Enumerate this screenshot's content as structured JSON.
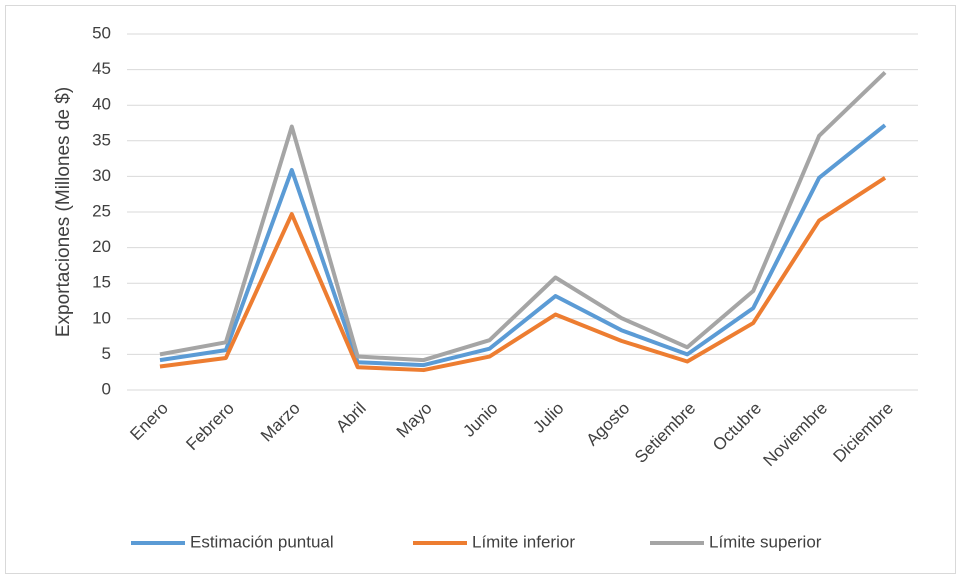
{
  "chart_data": {
    "type": "line",
    "y_label": "Exportaciones (Millones de $)",
    "categories": [
      "Enero",
      "Febrero",
      "Marzo",
      "Abril",
      "Mayo",
      "Junio",
      "Julio",
      "Agosto",
      "Setiembre",
      "Octubre",
      "Noviembre",
      "Diciembre"
    ],
    "series": [
      {
        "name": "Estimación puntual",
        "color": "#5b9bd5",
        "values": [
          4.2,
          5.6,
          30.9,
          3.9,
          3.5,
          5.8,
          13.2,
          8.4,
          5.0,
          11.5,
          29.8,
          37.2
        ]
      },
      {
        "name": "Límite inferior",
        "color": "#ed7d31",
        "values": [
          3.3,
          4.5,
          24.7,
          3.2,
          2.8,
          4.7,
          10.6,
          6.9,
          4.0,
          9.4,
          23.8,
          29.8
        ]
      },
      {
        "name": "Límite superior",
        "color": "#a5a5a5",
        "values": [
          5.0,
          6.7,
          37.0,
          4.7,
          4.2,
          7.0,
          15.8,
          10.1,
          6.0,
          13.9,
          35.7,
          44.6
        ]
      }
    ],
    "ylim": [
      0,
      50
    ],
    "yticks": [
      0,
      5,
      10,
      15,
      20,
      25,
      30,
      35,
      40,
      45,
      50
    ],
    "grid": true,
    "legend": "bottom"
  }
}
